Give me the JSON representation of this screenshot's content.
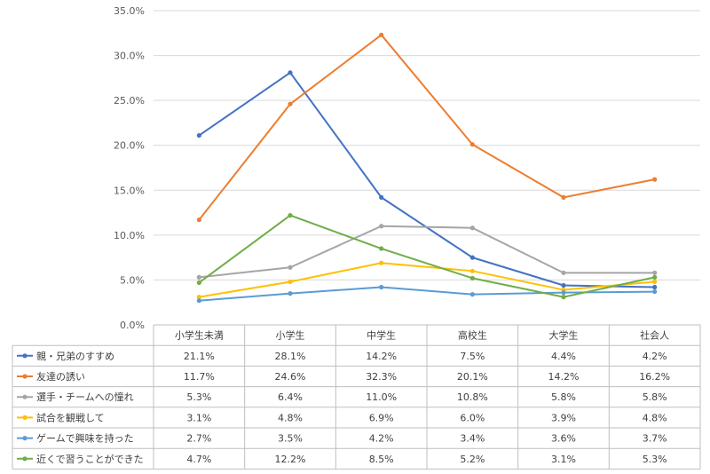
{
  "chart_data": {
    "type": "line",
    "categories": [
      "小学生未満",
      "小学生",
      "中学生",
      "高校生",
      "大学生",
      "社会人"
    ],
    "ylim": [
      0,
      35
    ],
    "yticks": [
      "0.0%",
      "5.0%",
      "10.0%",
      "15.0%",
      "20.0%",
      "25.0%",
      "30.0%",
      "35.0%"
    ],
    "grid": true,
    "legend": "data-table-left",
    "series": [
      {
        "name": "親・兄弟のすすめ",
        "color": "#4472C4",
        "values": [
          21.1,
          28.1,
          14.2,
          7.5,
          4.4,
          4.2
        ],
        "labels": [
          "21.1%",
          "28.1%",
          "14.2%",
          "7.5%",
          "4.4%",
          "4.2%"
        ]
      },
      {
        "name": "友達の誘い",
        "color": "#ED7D31",
        "values": [
          11.7,
          24.6,
          32.3,
          20.1,
          14.2,
          16.2
        ],
        "labels": [
          "11.7%",
          "24.6%",
          "32.3%",
          "20.1%",
          "14.2%",
          "16.2%"
        ]
      },
      {
        "name": "選手・チームへの憧れ",
        "color": "#A5A5A5",
        "values": [
          5.3,
          6.4,
          11.0,
          10.8,
          5.8,
          5.8
        ],
        "labels": [
          "5.3%",
          "6.4%",
          "11.0%",
          "10.8%",
          "5.8%",
          "5.8%"
        ]
      },
      {
        "name": "試合を観戦して",
        "color": "#FFC000",
        "values": [
          3.1,
          4.8,
          6.9,
          6.0,
          3.9,
          4.8
        ],
        "labels": [
          "3.1%",
          "4.8%",
          "6.9%",
          "6.0%",
          "3.9%",
          "4.8%"
        ]
      },
      {
        "name": "ゲームで興味を持った",
        "color": "#5B9BD5",
        "values": [
          2.7,
          3.5,
          4.2,
          3.4,
          3.6,
          3.7
        ],
        "labels": [
          "2.7%",
          "3.5%",
          "4.2%",
          "3.4%",
          "3.6%",
          "3.7%"
        ]
      },
      {
        "name": "近くで習うことができた",
        "color": "#70AD47",
        "values": [
          4.7,
          12.2,
          8.5,
          5.2,
          3.1,
          5.3
        ],
        "labels": [
          "4.7%",
          "12.2%",
          "8.5%",
          "5.2%",
          "3.1%",
          "5.3%"
        ]
      }
    ]
  }
}
